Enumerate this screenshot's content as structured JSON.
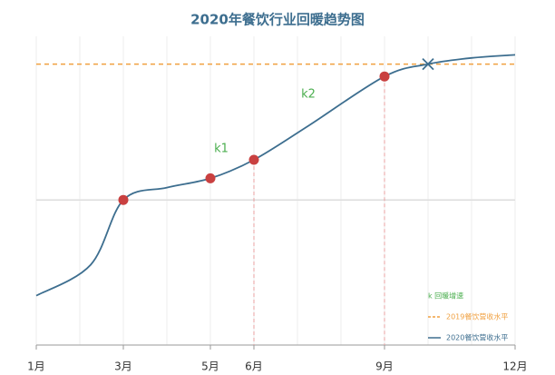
{
  "chart_data": {
    "type": "line",
    "title": "2020年餐饮行业回暖趋势图",
    "xlim": [
      1,
      12
    ],
    "xticks": [
      {
        "value": 1,
        "label": "1月"
      },
      {
        "value": 3,
        "label": "3月"
      },
      {
        "value": 5,
        "label": "5月"
      },
      {
        "value": 6,
        "label": "6月"
      },
      {
        "value": 9,
        "label": "9月"
      },
      {
        "value": 12,
        "label": "12月"
      }
    ],
    "xminorticks": [
      2,
      4,
      7,
      8,
      10,
      11
    ],
    "ylim": [
      0,
      100
    ],
    "baseline": 47,
    "series": [
      {
        "name": "2020餐饮营收水平",
        "color": "#3d6e8f",
        "x": [
          1,
          2.25,
          3,
          4,
          5,
          6,
          7.25,
          9,
          10,
          11,
          12
        ],
        "values": [
          16,
          26,
          47,
          51,
          54,
          60,
          71,
          87,
          91,
          93,
          94
        ]
      },
      {
        "name": "2019餐饮营收水平",
        "color": "#f0a040",
        "dashed": true,
        "value": 91
      }
    ],
    "key_points": {
      "color": "#c94040",
      "x": [
        3,
        5,
        6,
        9
      ],
      "values": [
        47,
        54,
        60,
        87
      ]
    },
    "drop_lines_x": [
      6,
      9
    ],
    "cross_point": {
      "color": "#3d6e8f",
      "x": 10,
      "value": 91
    },
    "annotations": [
      "k1",
      "k2"
    ],
    "annotation_color": "#4caf50",
    "legend_note": "k 回暖增速",
    "legend": "lower right"
  }
}
